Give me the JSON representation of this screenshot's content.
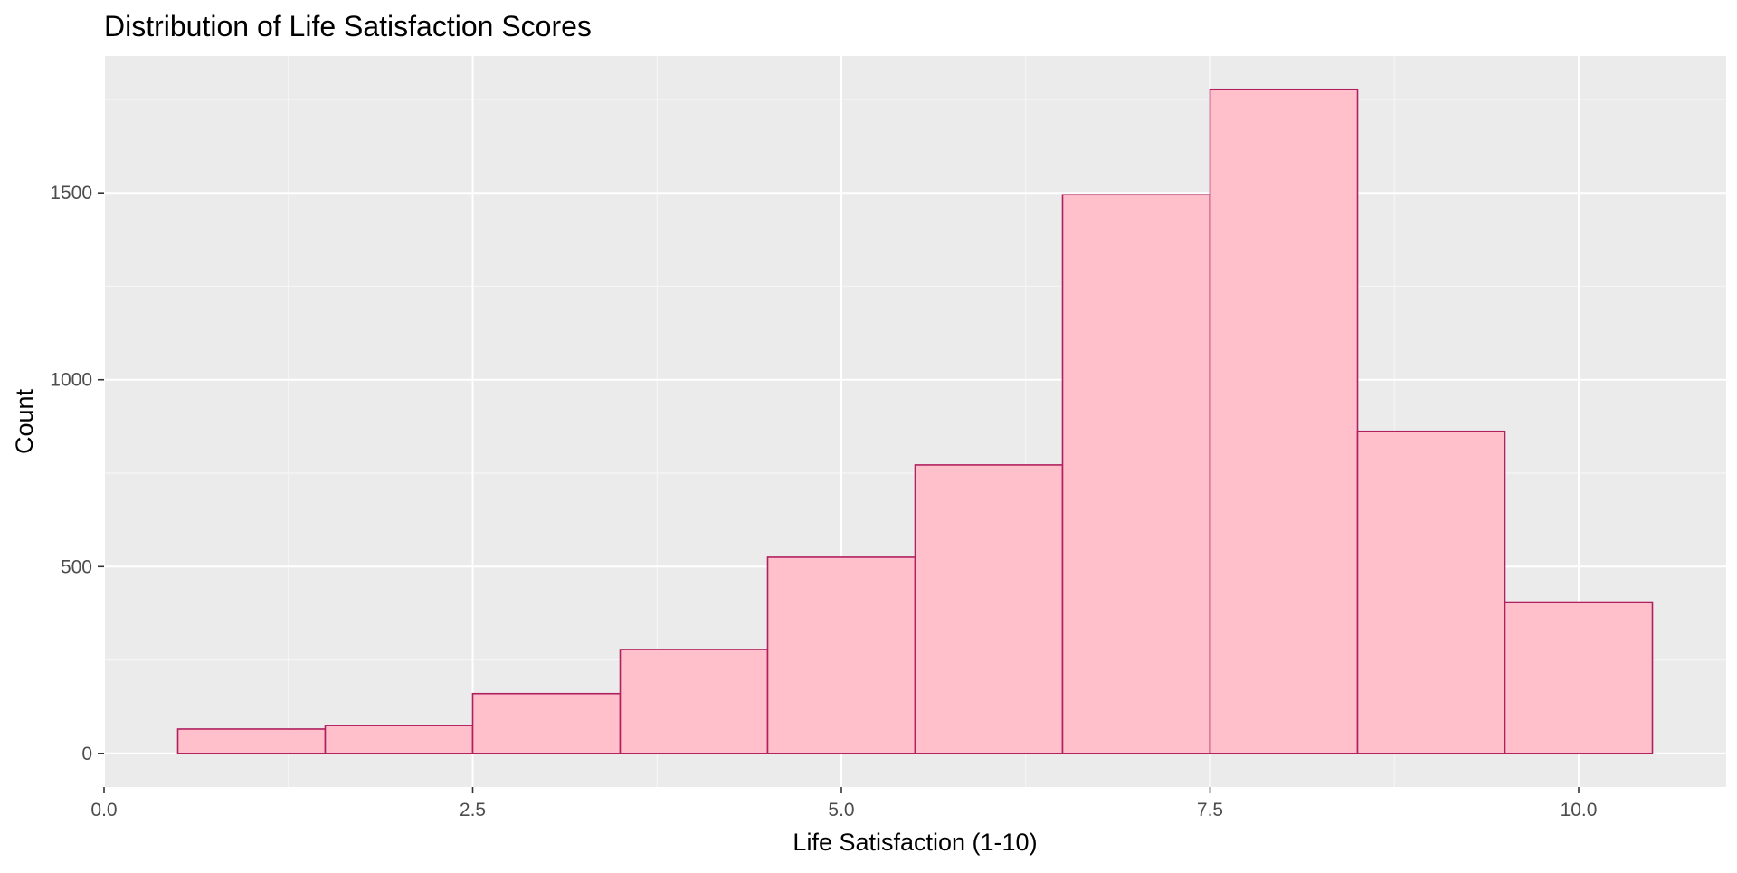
{
  "chart_data": {
    "type": "bar",
    "title": "Distribution of Life Satisfaction Scores",
    "xlabel": "Life Satisfaction (1-10)",
    "ylabel": "Count",
    "bins": [
      {
        "x0": 0.5,
        "x1": 1.5,
        "count": 65
      },
      {
        "x0": 1.5,
        "x1": 2.5,
        "count": 75
      },
      {
        "x0": 2.5,
        "x1": 3.5,
        "count": 160
      },
      {
        "x0": 3.5,
        "x1": 4.5,
        "count": 278
      },
      {
        "x0": 4.5,
        "x1": 5.5,
        "count": 525
      },
      {
        "x0": 5.5,
        "x1": 6.5,
        "count": 772
      },
      {
        "x0": 6.5,
        "x1": 7.5,
        "count": 1495
      },
      {
        "x0": 7.5,
        "x1": 8.5,
        "count": 1777
      },
      {
        "x0": 8.5,
        "x1": 9.5,
        "count": 862
      },
      {
        "x0": 9.5,
        "x1": 10.5,
        "count": 405
      }
    ],
    "xlim": [
      0,
      11
    ],
    "ylim": [
      -90,
      1866
    ],
    "x_ticks": [
      {
        "value": 0,
        "label": "0.0"
      },
      {
        "value": 2.5,
        "label": "2.5"
      },
      {
        "value": 5,
        "label": "5.0"
      },
      {
        "value": 7.5,
        "label": "7.5"
      },
      {
        "value": 10,
        "label": "10.0"
      }
    ],
    "y_ticks": [
      {
        "value": 0,
        "label": "0"
      },
      {
        "value": 500,
        "label": "500"
      },
      {
        "value": 1000,
        "label": "1000"
      },
      {
        "value": 1500,
        "label": "1500"
      }
    ],
    "grid": true,
    "legend": "none",
    "colors": {
      "panel_background": "#EBEBEB",
      "grid_major": "#FFFFFF",
      "grid_minor": "#F5F5F5",
      "bar_fill": "#FFC0CB",
      "bar_outline": "#B0205E",
      "tick_mark": "#333333"
    }
  }
}
